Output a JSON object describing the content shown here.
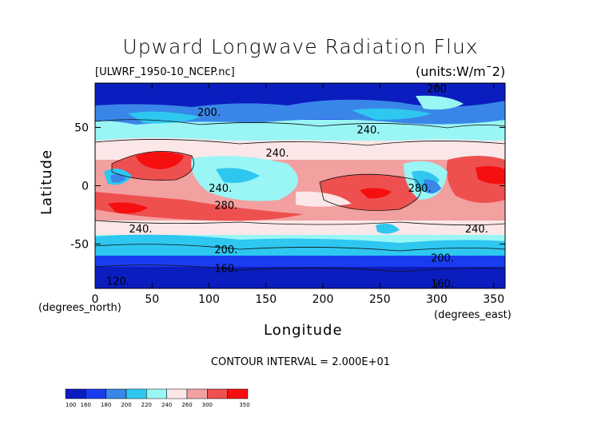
{
  "title": "Upward Longwave Radiation Flux",
  "file_label": "[ULWRF_1950-10_NCEP.nc]",
  "units_label": "(units:W/m¯2)",
  "x_unit_note": "(degrees_north)",
  "x_unit_note_east": "(degrees_east)",
  "contour_interval": "CONTOUR INTERVAL = 2.000E+01",
  "colors": {
    "c100": "#0a1dbf",
    "c160": "#1a3cf0",
    "c180": "#3a86e8",
    "c200": "#2ec7f0",
    "c220": "#9af5f5",
    "c240": "#fbe7e7",
    "c260": "#f2a0a0",
    "c300": "#ee5050",
    "c350": "#f50f0f"
  },
  "chart_data": {
    "type": "heatmap",
    "title": "Upward Longwave Radiation Flux",
    "xlabel": "Longitude",
    "ylabel": "Latitude",
    "xlim": [
      0,
      360
    ],
    "ylim": [
      -88,
      88
    ],
    "xticks": [
      0,
      50,
      100,
      150,
      200,
      250,
      300,
      350
    ],
    "yticks": [
      50,
      0,
      -50
    ],
    "contour_levels": [
      100,
      160,
      180,
      200,
      220,
      240,
      260,
      300,
      350
    ],
    "colorbar_labels": [
      "100",
      "160",
      "180",
      "200",
      "220",
      "240",
      "260",
      "300",
      "350"
    ],
    "contour_labels": [
      {
        "text": "200.",
        "lon": 100,
        "lat": 60
      },
      {
        "text": "200",
        "lon": 300,
        "lat": 80
      },
      {
        "text": "240.",
        "lon": 240,
        "lat": 45
      },
      {
        "text": "240.",
        "lon": 160,
        "lat": 25
      },
      {
        "text": "240.",
        "lon": 110,
        "lat": -5
      },
      {
        "text": "280.",
        "lon": 115,
        "lat": -20
      },
      {
        "text": "280.",
        "lon": 285,
        "lat": -5
      },
      {
        "text": "240.",
        "lon": 40,
        "lat": -40
      },
      {
        "text": "240.",
        "lon": 335,
        "lat": -40
      },
      {
        "text": "200.",
        "lon": 115,
        "lat": -58
      },
      {
        "text": "200.",
        "lon": 305,
        "lat": -65
      },
      {
        "text": "160.",
        "lon": 115,
        "lat": -74
      },
      {
        "text": "120.",
        "lon": 20,
        "lat": -85
      },
      {
        "text": "160.",
        "lon": 305,
        "lat": -87
      }
    ],
    "description_bands": [
      {
        "lat_from": 88,
        "lat_to": 70,
        "value": 160
      },
      {
        "lat_from": 70,
        "lat_to": 60,
        "value": 180
      },
      {
        "lat_from": 60,
        "lat_to": 45,
        "value": 220
      },
      {
        "lat_from": 45,
        "lat_to": 30,
        "value": 240
      },
      {
        "lat_from": 30,
        "lat_to": -30,
        "value": 280
      },
      {
        "lat_from": -30,
        "lat_to": -45,
        "value": 240
      },
      {
        "lat_from": -45,
        "lat_to": -55,
        "value": 220
      },
      {
        "lat_from": -55,
        "lat_to": -68,
        "value": 180
      },
      {
        "lat_from": -68,
        "lat_to": -88,
        "value": 120
      }
    ]
  }
}
